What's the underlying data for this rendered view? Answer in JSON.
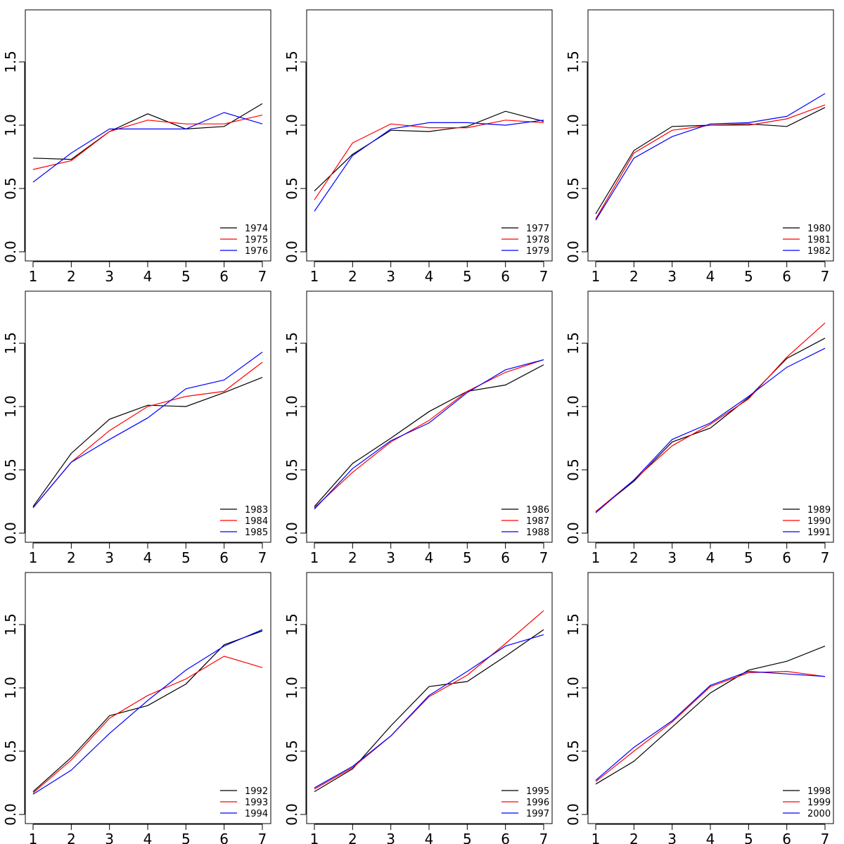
{
  "chart_data": [
    {
      "type": "line",
      "x": [
        1,
        2,
        3,
        4,
        5,
        6,
        7
      ],
      "ylim": [
        0,
        1.85
      ],
      "yticks": [
        "0.0",
        "0.5",
        "1.0",
        "1.5"
      ],
      "legend_position": "bottom-right",
      "series": [
        {
          "name": "1974",
          "color": "#000000",
          "values": [
            0.74,
            0.73,
            0.95,
            1.09,
            0.97,
            0.99,
            1.17
          ]
        },
        {
          "name": "1975",
          "color": "#ff0000",
          "values": [
            0.65,
            0.72,
            0.95,
            1.04,
            1.01,
            1.01,
            1.08
          ]
        },
        {
          "name": "1976",
          "color": "#0000ff",
          "values": [
            0.55,
            0.78,
            0.97,
            0.97,
            0.97,
            1.1,
            1.01
          ]
        }
      ]
    },
    {
      "type": "line",
      "x": [
        1,
        2,
        3,
        4,
        5,
        6,
        7
      ],
      "ylim": [
        0,
        1.85
      ],
      "yticks": [
        "0.0",
        "0.5",
        "1.0",
        "1.5"
      ],
      "legend_position": "bottom-right",
      "series": [
        {
          "name": "1977",
          "color": "#000000",
          "values": [
            0.48,
            0.77,
            0.96,
            0.95,
            0.99,
            1.11,
            1.03
          ]
        },
        {
          "name": "1978",
          "color": "#ff0000",
          "values": [
            0.41,
            0.86,
            1.01,
            0.98,
            0.98,
            1.04,
            1.02
          ]
        },
        {
          "name": "1979",
          "color": "#0000ff",
          "values": [
            0.32,
            0.76,
            0.97,
            1.02,
            1.02,
            1.0,
            1.04
          ]
        }
      ]
    },
    {
      "type": "line",
      "x": [
        1,
        2,
        3,
        4,
        5,
        6,
        7
      ],
      "ylim": [
        0,
        1.85
      ],
      "yticks": [
        "0.0",
        "0.5",
        "1.0",
        "1.5"
      ],
      "legend_position": "bottom-right",
      "series": [
        {
          "name": "1980",
          "color": "#000000",
          "values": [
            0.3,
            0.8,
            0.99,
            1.0,
            1.01,
            0.99,
            1.14
          ]
        },
        {
          "name": "1981",
          "color": "#ff0000",
          "values": [
            0.26,
            0.78,
            0.96,
            1.0,
            1.0,
            1.05,
            1.16
          ]
        },
        {
          "name": "1982",
          "color": "#0000ff",
          "values": [
            0.25,
            0.74,
            0.91,
            1.01,
            1.02,
            1.07,
            1.25
          ]
        }
      ]
    },
    {
      "type": "line",
      "x": [
        1,
        2,
        3,
        4,
        5,
        6,
        7
      ],
      "ylim": [
        0,
        1.85
      ],
      "yticks": [
        "0.0",
        "0.5",
        "1.0",
        "1.5"
      ],
      "legend_position": "bottom-right",
      "series": [
        {
          "name": "1983",
          "color": "#000000",
          "values": [
            0.21,
            0.63,
            0.9,
            1.01,
            1.0,
            1.11,
            1.23
          ]
        },
        {
          "name": "1984",
          "color": "#ff0000",
          "values": [
            0.2,
            0.56,
            0.81,
            1.0,
            1.08,
            1.12,
            1.35
          ]
        },
        {
          "name": "1985",
          "color": "#0000ff",
          "values": [
            0.2,
            0.56,
            0.74,
            0.91,
            1.14,
            1.21,
            1.43
          ]
        }
      ]
    },
    {
      "type": "line",
      "x": [
        1,
        2,
        3,
        4,
        5,
        6,
        7
      ],
      "ylim": [
        0,
        1.85
      ],
      "yticks": [
        "0.0",
        "0.5",
        "1.0",
        "1.5"
      ],
      "legend_position": "bottom-right",
      "series": [
        {
          "name": "1986",
          "color": "#000000",
          "values": [
            0.21,
            0.55,
            0.75,
            0.96,
            1.12,
            1.17,
            1.33
          ]
        },
        {
          "name": "1987",
          "color": "#ff0000",
          "values": [
            0.2,
            0.48,
            0.72,
            0.89,
            1.12,
            1.27,
            1.37
          ]
        },
        {
          "name": "1988",
          "color": "#0000ff",
          "values": [
            0.19,
            0.51,
            0.73,
            0.87,
            1.11,
            1.29,
            1.37
          ]
        }
      ]
    },
    {
      "type": "line",
      "x": [
        1,
        2,
        3,
        4,
        5,
        6,
        7
      ],
      "ylim": [
        0,
        1.85
      ],
      "yticks": [
        "0.0",
        "0.5",
        "1.0",
        "1.5"
      ],
      "legend_position": "bottom-right",
      "series": [
        {
          "name": "1989",
          "color": "#000000",
          "values": [
            0.17,
            0.41,
            0.72,
            0.83,
            1.07,
            1.38,
            1.54
          ]
        },
        {
          "name": "1990",
          "color": "#ff0000",
          "values": [
            0.17,
            0.42,
            0.69,
            0.86,
            1.06,
            1.39,
            1.66
          ]
        },
        {
          "name": "1991",
          "color": "#0000ff",
          "values": [
            0.16,
            0.42,
            0.74,
            0.87,
            1.08,
            1.31,
            1.46
          ]
        }
      ]
    },
    {
      "type": "line",
      "x": [
        1,
        2,
        3,
        4,
        5,
        6,
        7
      ],
      "ylim": [
        0,
        1.85
      ],
      "yticks": [
        "0.0",
        "0.5",
        "1.0",
        "1.5"
      ],
      "legend_position": "bottom-right",
      "series": [
        {
          "name": "1992",
          "color": "#000000",
          "values": [
            0.18,
            0.45,
            0.78,
            0.86,
            1.03,
            1.34,
            1.45
          ]
        },
        {
          "name": "1993",
          "color": "#ff0000",
          "values": [
            0.17,
            0.43,
            0.76,
            0.94,
            1.07,
            1.25,
            1.16
          ]
        },
        {
          "name": "1994",
          "color": "#0000ff",
          "values": [
            0.16,
            0.35,
            0.64,
            0.9,
            1.14,
            1.33,
            1.46
          ]
        }
      ]
    },
    {
      "type": "line",
      "x": [
        1,
        2,
        3,
        4,
        5,
        6,
        7
      ],
      "ylim": [
        0,
        1.85
      ],
      "yticks": [
        "0.0",
        "0.5",
        "1.0",
        "1.5"
      ],
      "legend_position": "bottom-right",
      "series": [
        {
          "name": "1995",
          "color": "#000000",
          "values": [
            0.18,
            0.36,
            0.7,
            1.01,
            1.05,
            1.25,
            1.46
          ]
        },
        {
          "name": "1996",
          "color": "#ff0000",
          "values": [
            0.2,
            0.37,
            0.62,
            0.93,
            1.1,
            1.35,
            1.61
          ]
        },
        {
          "name": "1997",
          "color": "#0000ff",
          "values": [
            0.21,
            0.38,
            0.62,
            0.94,
            1.13,
            1.33,
            1.42
          ]
        }
      ]
    },
    {
      "type": "line",
      "x": [
        1,
        2,
        3,
        4,
        5,
        6,
        7
      ],
      "ylim": [
        0,
        1.85
      ],
      "yticks": [
        "0.0",
        "0.5",
        "1.0",
        "1.5"
      ],
      "legend_position": "bottom-right",
      "series": [
        {
          "name": "1998",
          "color": "#000000",
          "values": [
            0.24,
            0.42,
            0.69,
            0.96,
            1.14,
            1.21,
            1.33
          ]
        },
        {
          "name": "1999",
          "color": "#ff0000",
          "values": [
            0.26,
            0.5,
            0.73,
            1.01,
            1.12,
            1.13,
            1.09
          ]
        },
        {
          "name": "2000",
          "color": "#0000ff",
          "values": [
            0.27,
            0.53,
            0.74,
            1.02,
            1.13,
            1.11,
            1.09
          ]
        }
      ]
    }
  ]
}
